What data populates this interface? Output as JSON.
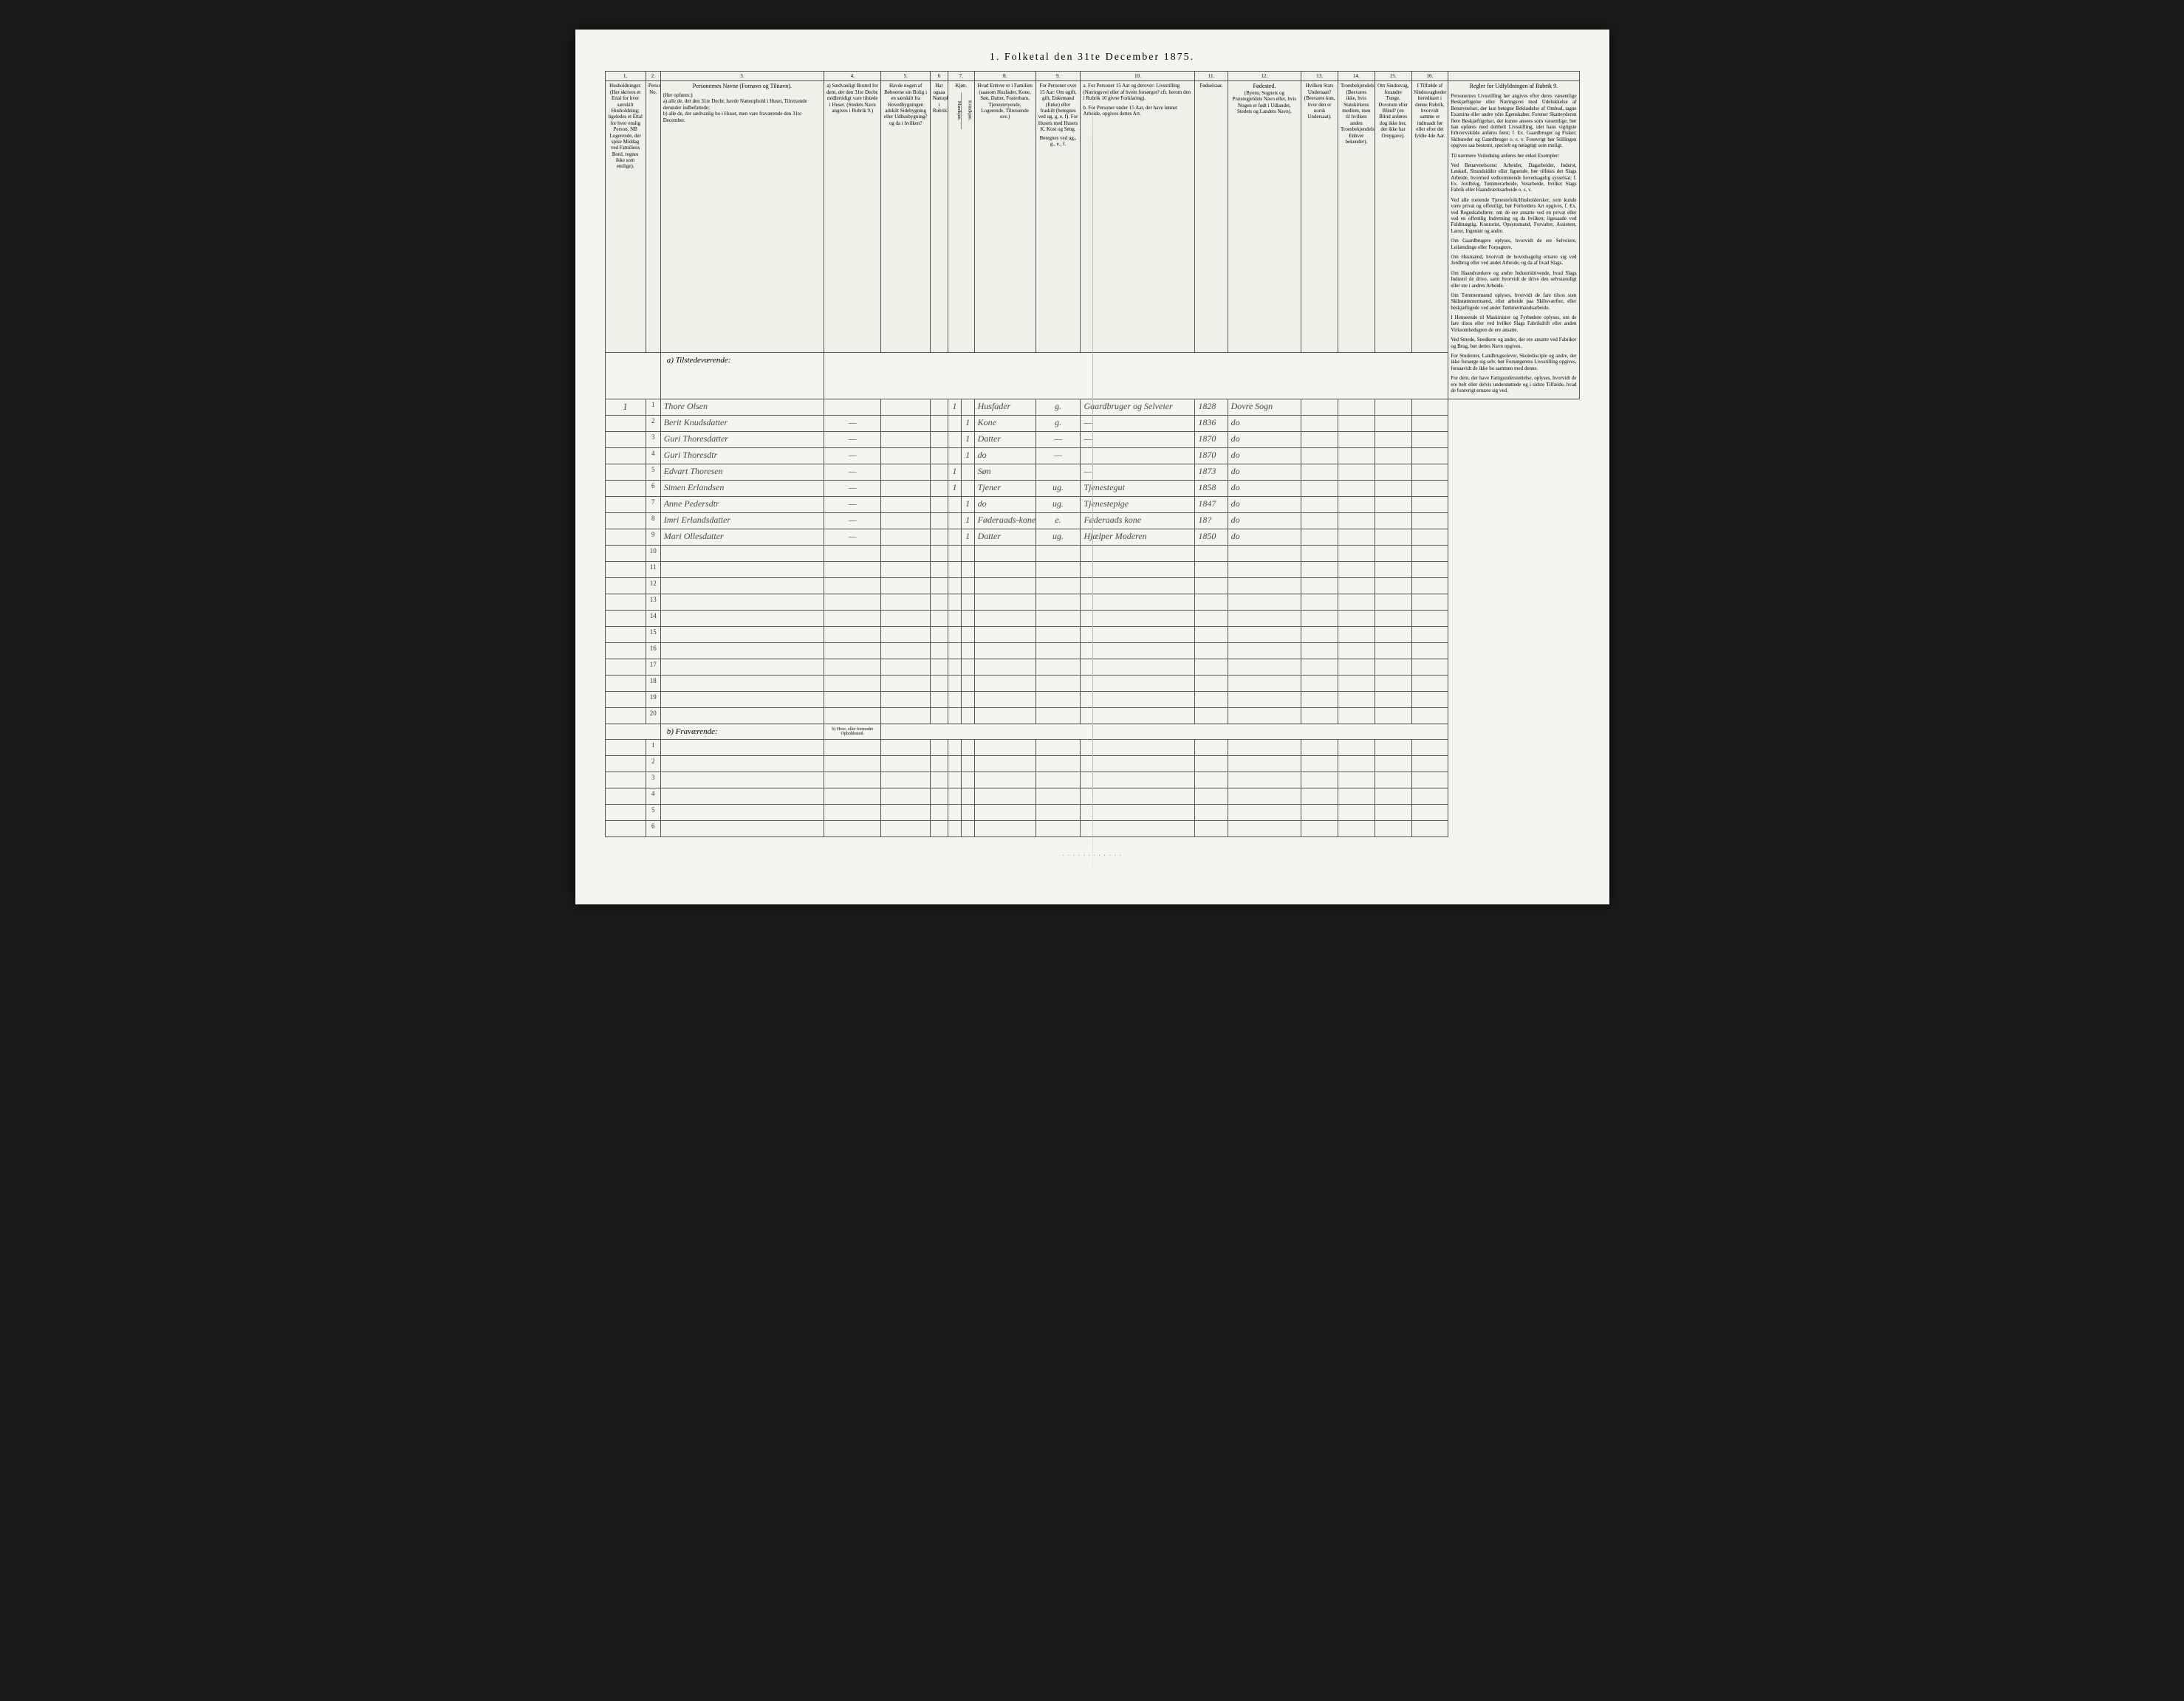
{
  "title": "1. Folketal den 31te December 1875.",
  "columnNumbers": [
    "1.",
    "2.",
    "3.",
    "4.",
    "5.",
    "6",
    "7.",
    "8.",
    "9.",
    "10.",
    "11.",
    "12.",
    "13.",
    "14.",
    "15.",
    "16."
  ],
  "headers": {
    "col1": "Husholdninger. (Her skrives et Ettal for hver særskilt Husholdning; ligeledes et Ettal for hver enslig Person. NB Logerende, der spise Middag ved Familiens Bord, regnes ikke som enslige).",
    "col2": "Personernes No.",
    "col3_title": "Personernes Navne (Fornavn og Tilnavn).",
    "col3_sub": "(Her opføres:)\na) alle de, der den 31te Decbr. havde Natteophold i Huset, Tilreisende derunder indbefattede;\nb) alle de, der sædvanlig bo i Huset, men vare fraværende den 31te December.",
    "col4": "a) Sædvanligt Bosted for dem, der den 31te Decbr. midlertidigt vare tilstede i Huset. (Stedets Navn angives i Rubrik 9.)",
    "col5": "Havde nogen af Beboerne sin Bolig i en særskilt fra Hovedbygningen adskilt Sidebygning eller Udhusbygning? og da i hvilken?",
    "col6": "Har ogsaa Nattophold i Rubrik.",
    "col7_title": "Kjøn.",
    "col7a": "Mandkjøn.",
    "col7b": "Kvindkjøn.",
    "col8": "Hvad Enhver er i Familien (saasom Husfader, Kone, Søn, Datter, Fosterbarn, Tjenestetyende, Logerende, Tilreisende osv.)",
    "col9_top": "For Personer over 15 Aar: Om ugift, gift, Enkemand (Enke) eller fraskilt (betegnes ved ug, g, e, f). For Husets med Husets K. Kost og Seng.",
    "col9_sub": "Betegnes ved ug., g., e., f.",
    "col10_a": "a. For Personer 15 Aar og derover: Livsstilling (Næringsvei eller af hvem forsørget? cfr. herom den i Rubrik 16 givne Forklaring).",
    "col10_b": "b. For Personer under 15 Aar, der have lønnet Arbeide, opgives dettes Art.",
    "col11": "Fødselsaar.",
    "col12_title": "Fødested.",
    "col12_sub": "(Byens, Sognets og Præstegjeldets Navn eller, hvis Nogen er født i Udlandet, Stedets og Landets Navn).",
    "col13": "Hvilken Stats Undersaat? (Besvares kun, hvor den er norsk Undersaat).",
    "col14": "Troesbekjendelse. (Besvares ikke, hvis Statskirkens medlem, men til hvilken anden Troesbekjendelse Enhver bekender).",
    "col15": "Om Sindssvag, forandre Tunge, Dovstum eller Blind? (en Blind anføres dog ikke her, der ikke har Orepgave).",
    "col16": "I Tilfælde af Sindssvagheder hereditært i denne Rubrik, hvorvidt samme er indtraadt før eller efter det fyldte 4de Aar.",
    "sideTitle": "Regler for Udfyldningen af Rubrik 9.",
    "sidePara1": "Personernes Livsstilling her angives efter deres væsentlige Beskjæftigelse eller Næringsvei med Udelukkelse af Benævnelser, der kun betegne Beklædelse af Ombud, tagne Examina eller andre ydre Egenskaber. Forener Skatteyderen flere Beskjæftigelser, der kunne ansees som væsentlige, bør han opføres med dobbelt Livsstilling, idet hans vigtigste Erhvervskilde anføres først; f. Ex. Gaardbruger og Fisker; Skibsreder og Gaardbruger o. s. v. Forøvrigt bør Stillingen opgives saa bestemt, specielt og nøiagtigt som muligt.",
    "sidePara2": "Til nærmere Veiledning anføres her enkel Exempler:",
    "sidePara3": "Ved Benævnelserne: Arbeider, Dagarbeider, Inderst, Løskarl, Strandsidder eller lignende, bør tilføies det Slags Arbeide, hvormed vedkommende hovedsagelig sysselsat; f. Ex. Jordbrug, Tømmerarbeide, Veiarbeide, hvilket Slags Fabrik eller Haandværksarbeide o. s. v.",
    "sidePara4": "Ved alle roeiende Tjenestefolk/Husholdersker, som kunde være privat og offentligt, bør Forholdets Art opgives, f. Ex. ved Regnskabsfører, om de ere ansatte ved en privat eller ved en offentlig Indretning og da hvilken; ligesaade ved Fuldmægtig, Kontorist, Opsynsmand, Forvalter, Assistent, Lærer, Ingeniør og andre.",
    "sidePara5": "Om Gaardbrugere oplyses, hvorvidt de ere Selveiere, Leilændinge eller Forpagtere.",
    "sidePara6": "Om Husmænd, hvorvidt de hovedsagelig ernære sig ved Jordbrug eller ved andet Arbeide, og da af hvad Slags.",
    "sidePara7": "Om Haandværkere og andre Industridrivende, hvad Slags Industri de drive, samt hvorvidt de drive den selvstændigt eller ere i andres Arbeide.",
    "sidePara8": "Om Tømmermænd oplyses, hvorvidt de fare tilsos som Skibstømmermænd, eller arbeide paa Skibsværfter, eller beskjæftigede ved andet Tømmermandsarbeide.",
    "sidePara9": "I Henseende til Maskinister og Fyrbødere oplyses, om de fare tilsos eller ved hvilket Slags Fabrikdrift eller anden Virksomhedsgren de ere ansatte.",
    "sidePara10": "Ved Smede, Snedkere og andre, der ere ansatte ved Fabriker og Brug, bør dettes Navn opgives.",
    "sidePara11": "For Studenter, Landbrugselever, Skoledisciple og andre, der ikke forsørge sig selv, bør Forsørgerens Livsstilling opgives, forsaavidt de ikke bo sammen med denne.",
    "sidePara12": "For dem, der have Fattigunderstøttelse, oplyses, hvorvidt de ere helt eller delvis understøttede og i sidste Tilfælde, hvad de forøvrigt ernære sig ved."
  },
  "sectionA": "a) Tilstedeværende:",
  "sectionB": "b) Fraværende:",
  "sectionBCol4": "b) Hvor, eller formodet Opholdssted.",
  "rows": [
    {
      "hh": "1",
      "n": "1",
      "name": "Thore Olsen",
      "c4": "",
      "c5": "",
      "c6": "",
      "m": "1",
      "k": "",
      "rel": "Husfader",
      "civ": "g.",
      "occ": "Gaardbruger og Selveier",
      "year": "1828",
      "place": "Dovre Sogn"
    },
    {
      "hh": "",
      "n": "2",
      "name": "Berit Knudsdatter",
      "c4": "—",
      "c5": "",
      "c6": "",
      "m": "",
      "k": "1",
      "rel": "Kone",
      "civ": "g.",
      "occ": "—",
      "year": "1836",
      "place": "do"
    },
    {
      "hh": "",
      "n": "3",
      "name": "Guri Thoresdatter",
      "c4": "—",
      "c5": "",
      "c6": "",
      "m": "",
      "k": "1",
      "rel": "Datter",
      "civ": "—",
      "occ": "—",
      "year": "1870",
      "place": "do"
    },
    {
      "hh": "",
      "n": "4",
      "name": "Guri Thoresdtr",
      "c4": "—",
      "c5": "",
      "c6": "",
      "m": "",
      "k": "1",
      "rel": "do",
      "civ": "—",
      "occ": "",
      "year": "1870",
      "place": "do"
    },
    {
      "hh": "",
      "n": "5",
      "name": "Edvart Thoresen",
      "c4": "—",
      "c5": "",
      "c6": "",
      "m": "1",
      "k": "",
      "rel": "Søn",
      "civ": "",
      "occ": "—",
      "year": "1873",
      "place": "do"
    },
    {
      "hh": "",
      "n": "6",
      "name": "Simen Erlandsen",
      "c4": "—",
      "c5": "",
      "c6": "",
      "m": "1",
      "k": "",
      "rel": "Tjener",
      "civ": "ug.",
      "occ": "Tjenestegut",
      "year": "1858",
      "place": "do"
    },
    {
      "hh": "",
      "n": "7",
      "name": "Anne Pedersdtr",
      "c4": "—",
      "c5": "",
      "c6": "",
      "m": "",
      "k": "1",
      "rel": "do",
      "civ": "ug.",
      "occ": "Tjenestepige",
      "year": "1847",
      "place": "do"
    },
    {
      "hh": "",
      "n": "8",
      "name": "Imri Erlandsdatter",
      "c4": "—",
      "c5": "",
      "c6": "",
      "m": "",
      "k": "1",
      "rel": "Føderaads-kone",
      "civ": "e.",
      "occ": "Føderaads kone",
      "year": "18?",
      "place": "do"
    },
    {
      "hh": "",
      "n": "9",
      "name": "Mari Ollesdatter",
      "c4": "—",
      "c5": "",
      "c6": "",
      "m": "",
      "k": "1",
      "rel": "Datter",
      "civ": "ug.",
      "occ": "Hjælper Moderen",
      "year": "1850",
      "place": "do"
    }
  ],
  "emptyRowsA": [
    "10",
    "11",
    "12",
    "13",
    "14",
    "15",
    "16",
    "17",
    "18",
    "19",
    "20"
  ],
  "emptyRowsB": [
    "1",
    "2",
    "3",
    "4",
    "5",
    "6"
  ],
  "bottomText": "· · · · · · · · · · · ·",
  "colors": {
    "pageBg": "#f5f5f0",
    "border": "#555555",
    "text": "#333333",
    "script": "#444444"
  }
}
